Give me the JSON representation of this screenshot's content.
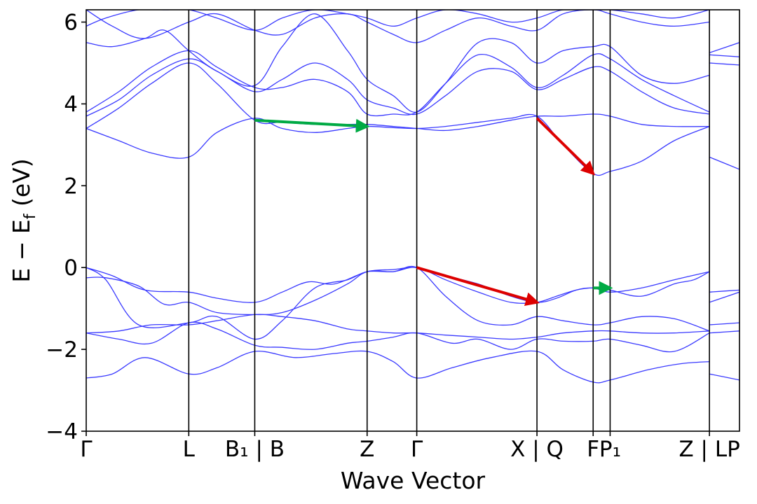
{
  "chart_data": {
    "type": "line",
    "title": "",
    "xlabel": "Wave Vector",
    "ylabel": "E − E_f (eV)",
    "ylabel_parts": {
      "main": "E  −  E",
      "sub": "f",
      "unit": " (eV)"
    },
    "ylim": [
      -4,
      6.3
    ],
    "yticks": [
      {
        "value": -4,
        "label": "−4"
      },
      {
        "value": -2,
        "label": "−2"
      },
      {
        "value": 0,
        "label": "0"
      },
      {
        "value": 2,
        "label": "2"
      },
      {
        "value": 4,
        "label": "4"
      },
      {
        "value": 6,
        "label": "6"
      }
    ],
    "xlim": [
      0,
      10
    ],
    "kpoints": [
      {
        "label": "Γ",
        "x": 0.0
      },
      {
        "label": "L",
        "x": 1.57
      },
      {
        "label": "B₁ | B",
        "x": 2.58
      },
      {
        "label": "Z",
        "x": 4.3
      },
      {
        "label": "Γ",
        "x": 5.06
      },
      {
        "label": "X | Q",
        "x": 6.9
      },
      {
        "label": "F",
        "x": 7.76
      },
      {
        "label": "P₁",
        "x": 8.02
      },
      {
        "label": "Z | LP",
        "x": 9.54
      }
    ],
    "kline_x": [
      1.57,
      2.58,
      4.3,
      5.06,
      6.9,
      7.76,
      8.02,
      9.54
    ],
    "grid": false,
    "band_color": "#3a3aff",
    "series": [
      {
        "x": [
          0,
          0.4,
          0.9,
          1.57,
          2.0,
          2.58,
          3.2,
          3.8,
          4.3,
          4.7,
          5.06,
          5.6,
          6.2,
          6.9,
          7.3,
          7.76,
          8.02,
          8.6,
          9.1,
          9.54
        ],
        "values": [
          -2.7,
          -2.6,
          -2.2,
          -2.6,
          -2.45,
          -2.05,
          -2.2,
          -2.1,
          -2.05,
          -2.3,
          -2.7,
          -2.45,
          -2.2,
          -2.05,
          -2.5,
          -2.8,
          -2.75,
          -2.5,
          -2.35,
          -2.3
        ]
      },
      {
        "x": [
          0,
          0.5,
          1.0,
          1.57,
          2.0,
          2.58,
          3.0,
          3.5,
          4.0,
          4.3,
          4.7,
          5.06,
          5.6,
          6.0,
          6.5,
          6.9,
          7.3,
          7.76,
          8.02,
          8.5,
          9.0,
          9.54
        ],
        "values": [
          -1.6,
          -1.75,
          -1.85,
          -1.35,
          -1.5,
          -1.9,
          -1.95,
          -2.0,
          -1.85,
          -1.8,
          -1.7,
          -1.6,
          -1.85,
          -1.75,
          -2.0,
          -1.75,
          -1.8,
          -1.8,
          -1.75,
          -1.9,
          -2.05,
          -1.6
        ]
      },
      {
        "x": [
          0,
          0.5,
          1.0,
          1.57,
          2.0,
          2.58,
          3.0,
          3.5,
          4.0,
          4.3,
          4.7,
          5.06,
          5.5,
          6.0,
          6.5,
          6.9,
          7.3,
          7.76,
          8.02,
          8.5,
          9.0,
          9.54
        ],
        "values": [
          -1.6,
          -1.55,
          -1.4,
          -1.4,
          -1.3,
          -1.15,
          -1.2,
          -1.3,
          -1.5,
          -1.55,
          -1.6,
          -1.6,
          -1.65,
          -1.7,
          -1.75,
          -1.7,
          -1.6,
          -1.55,
          -1.55,
          -1.6,
          -1.6,
          -1.55
        ]
      },
      {
        "x": [
          0,
          0.3,
          0.8,
          1.57,
          2.0,
          2.58,
          3.0,
          3.5,
          4.0,
          4.3,
          4.7,
          5.06,
          5.5,
          6.0,
          6.5,
          6.9,
          7.3,
          7.76,
          8.02,
          8.5,
          9.0,
          9.54
        ],
        "values": [
          0,
          -0.3,
          -1.4,
          -1.35,
          -1.2,
          -1.75,
          -1.3,
          -0.5,
          -0.3,
          -0.1,
          -0.1,
          0,
          -0.7,
          -1.3,
          -1.4,
          -1.2,
          -1.3,
          -1.4,
          -1.35,
          -1.2,
          -1.25,
          -1.55
        ]
      },
      {
        "x": [
          0,
          0.3,
          0.8,
          1.2,
          1.57,
          2.0,
          2.58,
          3.0,
          3.5,
          4.0,
          4.3,
          4.7,
          5.06,
          5.5,
          6.0,
          6.5,
          6.9,
          7.2,
          7.5,
          7.76,
          8.02,
          8.5,
          9.0,
          9.3,
          9.54
        ],
        "values": [
          -0.25,
          -0.25,
          -0.45,
          -0.9,
          -0.85,
          -1.1,
          -1.15,
          -1.1,
          -0.8,
          -0.4,
          -0.1,
          -0.1,
          0,
          -0.3,
          -0.6,
          -0.85,
          -0.85,
          -0.7,
          -0.55,
          -0.5,
          -0.55,
          -0.7,
          -0.4,
          -0.3,
          -0.1
        ]
      },
      {
        "x": [
          0,
          0.4,
          0.9,
          1.57,
          2.0,
          2.58,
          3.0,
          3.4,
          3.8,
          4.3,
          4.7,
          5.06,
          5.5,
          6.0,
          6.5,
          6.9,
          7.2,
          7.5,
          7.76,
          8.02,
          8.5,
          9.0,
          9.54
        ],
        "values": [
          0,
          -0.2,
          -0.55,
          -0.6,
          -0.75,
          -0.85,
          -0.6,
          -0.35,
          -0.4,
          -0.1,
          -0.05,
          0,
          -0.2,
          -0.4,
          -0.7,
          -0.85,
          -0.75,
          -0.55,
          -0.5,
          -0.6,
          -0.5,
          -0.3,
          -0.1
        ]
      },
      {
        "x": [
          0,
          0.5,
          1.0,
          1.57,
          2.0,
          2.58,
          3.0,
          3.5,
          4.0,
          4.3,
          4.7,
          5.06,
          5.5,
          6.0,
          6.5,
          6.9,
          7.3,
          7.76,
          8.02,
          8.5,
          9.0,
          9.54
        ],
        "values": [
          3.4,
          3.1,
          2.8,
          2.7,
          3.3,
          3.65,
          3.4,
          3.3,
          3.4,
          3.45,
          3.42,
          3.4,
          3.45,
          3.55,
          3.65,
          3.7,
          3.0,
          2.3,
          2.35,
          2.6,
          3.1,
          3.45
        ]
      },
      {
        "x": [
          0,
          0.5,
          1.0,
          1.57,
          2.0,
          2.58,
          3.0,
          3.5,
          4.0,
          4.3,
          4.7,
          5.06,
          5.5,
          6.0,
          6.5,
          6.9,
          7.3,
          7.76,
          8.02,
          8.5,
          9.0,
          9.54
        ],
        "values": [
          3.4,
          3.9,
          4.5,
          5.0,
          4.5,
          3.6,
          3.55,
          3.5,
          3.5,
          3.5,
          3.45,
          3.4,
          3.35,
          3.45,
          3.6,
          3.7,
          3.7,
          3.75,
          3.7,
          3.5,
          3.45,
          3.45
        ]
      },
      {
        "x": [
          0,
          0.5,
          1.0,
          1.57,
          2.0,
          2.58,
          3.0,
          3.5,
          4.0,
          4.3,
          4.7,
          5.06,
          5.5,
          6.0,
          6.5,
          6.9,
          7.3,
          7.76,
          8.02,
          8.5,
          9.0,
          9.54
        ],
        "values": [
          3.7,
          4.1,
          4.7,
          5.1,
          4.8,
          4.3,
          4.6,
          5.0,
          4.6,
          4.1,
          3.9,
          3.75,
          4.2,
          4.8,
          4.8,
          4.35,
          4.6,
          4.9,
          4.8,
          4.3,
          3.9,
          3.75
        ]
      },
      {
        "x": [
          0,
          0.5,
          1.0,
          1.57,
          2.0,
          2.58,
          3.0,
          3.5,
          4.0,
          4.3,
          4.7,
          5.06,
          5.5,
          6.0,
          6.5,
          6.9,
          7.3,
          7.76,
          8.02,
          8.5,
          9.0,
          9.54
        ],
        "values": [
          3.8,
          4.3,
          4.9,
          5.3,
          4.9,
          4.4,
          4.4,
          4.6,
          4.3,
          3.75,
          3.75,
          3.8,
          4.5,
          5.2,
          4.9,
          4.4,
          4.7,
          5.2,
          5.1,
          4.6,
          4.2,
          3.8
        ]
      },
      {
        "x": [
          0,
          0.4,
          0.9,
          1.2,
          1.57,
          2.0,
          2.58,
          3.0,
          3.5,
          4.0,
          4.3,
          4.7,
          5.06,
          5.5,
          6.0,
          6.5,
          6.9,
          7.3,
          7.76,
          8.02,
          8.5,
          9.0,
          9.54
        ],
        "values": [
          5.5,
          5.4,
          5.6,
          5.8,
          5.3,
          4.8,
          4.45,
          5.4,
          6.2,
          5.3,
          4.6,
          4.2,
          3.8,
          4.5,
          5.5,
          5.5,
          5.0,
          5.3,
          5.4,
          5.4,
          4.7,
          4.5,
          4.7
        ]
      },
      {
        "x": [
          0,
          0.4,
          0.9,
          1.57,
          2.0,
          2.58,
          3.0,
          3.5,
          4.0,
          4.3,
          4.7,
          5.06,
          5.5,
          6.0,
          6.5,
          6.9,
          7.3,
          7.76,
          8.02,
          8.5,
          9.0,
          9.54
        ],
        "values": [
          6.3,
          5.9,
          5.6,
          6.0,
          6.2,
          5.8,
          5.7,
          6.1,
          6.2,
          6.0,
          5.7,
          5.5,
          5.8,
          6.1,
          5.9,
          5.8,
          6.2,
          6.3,
          6.2,
          6.0,
          5.9,
          6.0
        ]
      },
      {
        "x": [
          0,
          0.3,
          0.8,
          1.2,
          1.57,
          2.0,
          2.58,
          3.0,
          3.5,
          4.0,
          4.3,
          4.7,
          5.06,
          5.5,
          6.0,
          6.5,
          6.9,
          7.3,
          7.76,
          8.02,
          8.5,
          9.0,
          9.54
        ],
        "values": [
          5.9,
          6.1,
          6.3,
          6.3,
          6.3,
          6.1,
          5.8,
          6.1,
          6.3,
          6.2,
          6.1,
          5.9,
          6.1,
          6.3,
          6.2,
          6.0,
          6.1,
          6.3,
          6.3,
          6.3,
          6.2,
          6.1,
          6.3
        ]
      },
      {
        "x": [
          9.54,
          10
        ],
        "values": [
          2.7,
          2.4
        ]
      },
      {
        "x": [
          9.54,
          10
        ],
        "values": [
          -0.6,
          -0.55
        ]
      },
      {
        "x": [
          9.54,
          10
        ],
        "values": [
          -0.85,
          -0.6
        ]
      },
      {
        "x": [
          9.54,
          10
        ],
        "values": [
          -1.4,
          -1.35
        ]
      },
      {
        "x": [
          9.54,
          10
        ],
        "values": [
          -1.6,
          -1.55
        ]
      },
      {
        "x": [
          9.54,
          10
        ],
        "values": [
          -2.6,
          -2.75
        ]
      },
      {
        "x": [
          9.54,
          10
        ],
        "values": [
          5.0,
          4.95
        ]
      },
      {
        "x": [
          9.54,
          10
        ],
        "values": [
          5.2,
          5.15
        ]
      },
      {
        "x": [
          9.54,
          10
        ],
        "values": [
          5.25,
          5.5
        ]
      }
    ],
    "arrows": [
      {
        "color": "#00aa44",
        "from": [
          2.58,
          3.6
        ],
        "to": [
          4.3,
          3.45
        ]
      },
      {
        "color": "#dd0000",
        "from": [
          6.9,
          3.65
        ],
        "to": [
          7.76,
          2.3
        ]
      },
      {
        "color": "#dd0000",
        "from": [
          5.06,
          0.0
        ],
        "to": [
          6.9,
          -0.85
        ]
      },
      {
        "color": "#00aa44",
        "from": [
          7.76,
          -0.5
        ],
        "to": [
          8.02,
          -0.5
        ]
      }
    ]
  }
}
